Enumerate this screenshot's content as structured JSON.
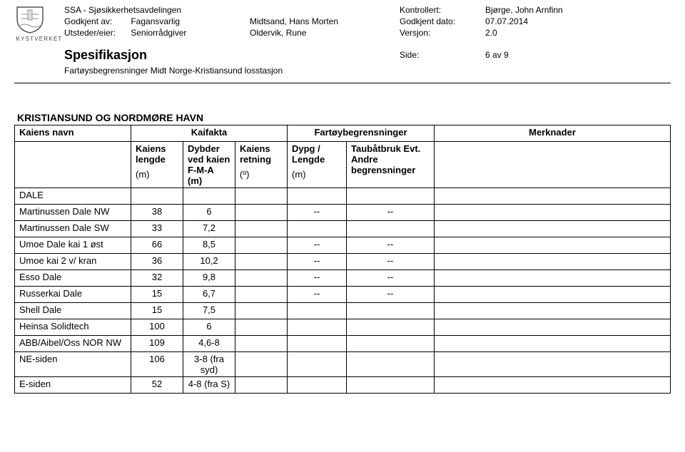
{
  "logo": {
    "label": "KYSTVERKET"
  },
  "header": {
    "dept": "SSA - Sjøsikkerhetsavdelingen",
    "approved_by_label": "Godkjent av:",
    "approved_by_role": "Fagansvarlig",
    "approved_by_name": "Midtsand, Hans Morten",
    "issuer_label": "Utsteder/eier:",
    "issuer_role": "Seniorrådgiver",
    "issuer_name": "Oldervik, Rune",
    "checked_label": "Kontrollert:",
    "checked_name": "Bjørge, John Arnfinn",
    "approved_date_label": "Godkjent dato:",
    "approved_date": "07.07.2014",
    "version_label": "Versjon:",
    "version": "2.0"
  },
  "spec": {
    "title": "Spesifikasjon",
    "page_label": "Side:",
    "page_value": "6 av 9",
    "subtitle": "Fartøysbegrensninger Midt Norge-Kristiansund losstasjon"
  },
  "section_title": "KRISTIANSUND OG NORDMØRE HAVN",
  "table": {
    "top_headers": {
      "name": "Kaiens navn",
      "facts": "Kaifakta",
      "limits": "Fartøybegrensninger",
      "remarks": "Merknader"
    },
    "sub_headers": {
      "length": "Kaiens lengde",
      "length_unit": "(m)",
      "depth": "Dybder ved kaien F-M-A (m)",
      "direction": "Kaiens retning",
      "direction_unit": "(º)",
      "draft": "Dypg / Lengde",
      "draft_unit": "(m)",
      "tug": "Taubåtbruk Evt. Andre begrensninger"
    },
    "group_label": "DALE",
    "rows": [
      {
        "name": "Martinussen Dale NW",
        "len": "38",
        "depth": "6",
        "dir": "",
        "draft": "--",
        "tug": "--"
      },
      {
        "name": "Martinussen Dale SW",
        "len": "33",
        "depth": "7,2",
        "dir": "",
        "draft": "",
        "tug": ""
      },
      {
        "name": "Umoe Dale kai 1 øst",
        "len": "66",
        "depth": "8,5",
        "dir": "",
        "draft": "--",
        "tug": "--"
      },
      {
        "name": "Umoe kai 2  v/ kran",
        "len": "36",
        "depth": "10,2",
        "dir": "",
        "draft": "--",
        "tug": "--"
      },
      {
        "name": "Esso Dale",
        "len": "32",
        "depth": "9,8",
        "dir": "",
        "draft": "--",
        "tug": "--"
      },
      {
        "name": "Russerkai Dale",
        "len": "15",
        "depth": "6,7",
        "dir": "",
        "draft": "--",
        "tug": "--"
      },
      {
        "name": "Shell Dale",
        "len": "15",
        "depth": "7,5",
        "dir": "",
        "draft": "",
        "tug": ""
      },
      {
        "name": "Heinsa Solidtech",
        "len": "100",
        "depth": "6",
        "dir": "",
        "draft": "",
        "tug": ""
      },
      {
        "name": "ABB/Aibel/Oss NOR NW",
        "len": "109",
        "depth": "4,6-8",
        "dir": "",
        "draft": "",
        "tug": ""
      },
      {
        "name": "NE-siden",
        "len": "106",
        "depth": "3-8 (fra syd)",
        "dir": "",
        "draft": "",
        "tug": ""
      },
      {
        "name": "E-siden",
        "len": "52",
        "depth": "4-8 (fra S)",
        "dir": "",
        "draft": "",
        "tug": ""
      }
    ]
  }
}
